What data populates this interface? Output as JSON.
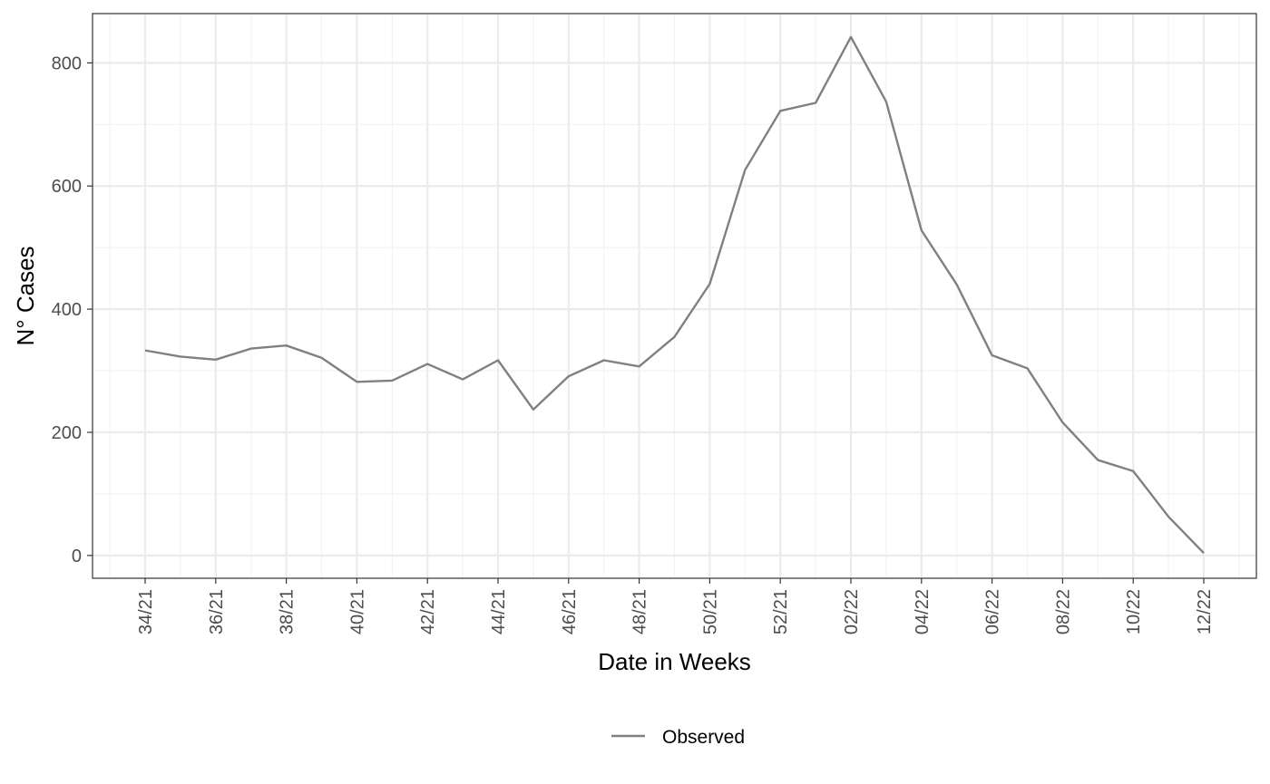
{
  "chart_data": {
    "type": "line",
    "xlabel": "Date in Weeks",
    "ylabel": "N° Cases",
    "x": [
      "34/21",
      "35/21",
      "36/21",
      "37/21",
      "38/21",
      "39/21",
      "40/21",
      "41/21",
      "42/21",
      "43/21",
      "44/21",
      "45/21",
      "46/21",
      "47/21",
      "48/21",
      "49/21",
      "50/21",
      "51/21",
      "52/21",
      "01/22",
      "02/22",
      "03/22",
      "04/22",
      "05/22",
      "06/22",
      "07/22",
      "08/22",
      "09/22",
      "10/22",
      "11/22",
      "12/22"
    ],
    "x_tick_labels": [
      "34/21",
      "36/21",
      "38/21",
      "40/21",
      "42/21",
      "44/21",
      "46/21",
      "48/21",
      "50/21",
      "52/21",
      "02/22",
      "04/22",
      "06/22",
      "08/22",
      "10/22",
      "12/22"
    ],
    "series": [
      {
        "name": "Observed",
        "color": "#808080",
        "values": [
          333,
          323,
          318,
          336,
          341,
          321,
          282,
          284,
          311,
          286,
          317,
          237,
          291,
          317,
          307,
          355,
          441,
          626,
          722,
          735,
          842,
          737,
          528,
          440,
          325,
          304,
          216,
          155,
          137,
          63,
          4
        ]
      }
    ],
    "ylim": [
      -37,
      880
    ],
    "y_ticks": [
      0,
      200,
      400,
      600,
      800
    ],
    "grid": true,
    "legend": {
      "position": "bottom",
      "entries": [
        "Observed"
      ]
    }
  }
}
